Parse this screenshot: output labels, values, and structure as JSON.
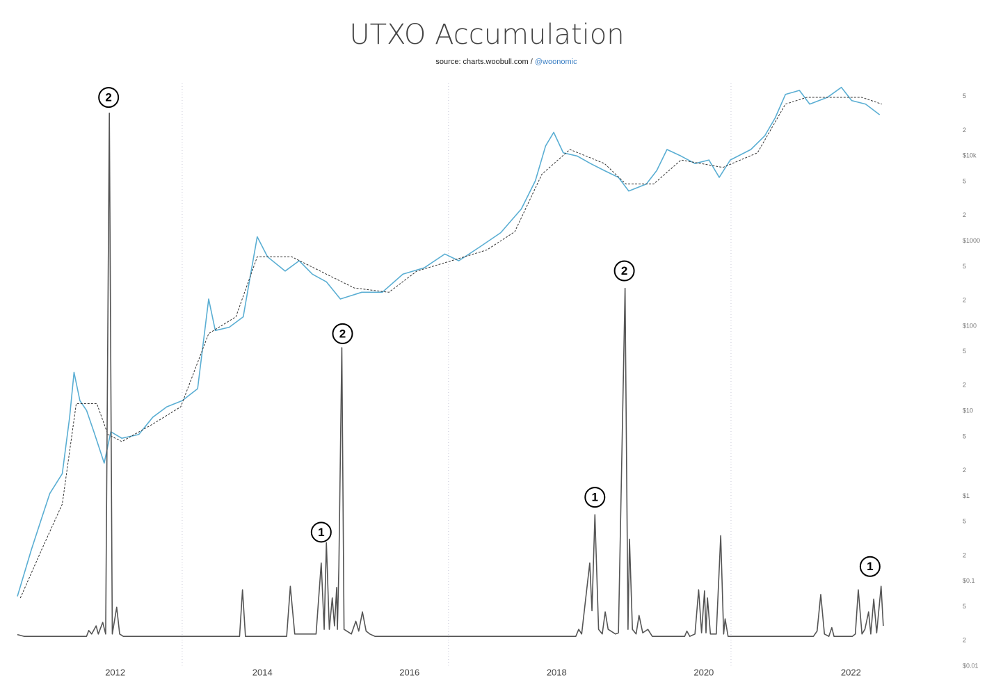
{
  "chart_data": {
    "type": "line",
    "title": "UTXO Accumulation",
    "source_text": "source: charts.woobull.com /",
    "source_link": "@woonomic",
    "log_y": true,
    "xlim": [
      2010.67,
      2022.63
    ],
    "xticks": [
      2012,
      2014,
      2016,
      2018,
      2020,
      2022
    ],
    "ylim": [
      0.01,
      70000
    ],
    "yticks": [
      {
        "value": 0.01,
        "label": "$0.01"
      },
      {
        "value": 0.02,
        "label": "2"
      },
      {
        "value": 0.05,
        "label": "5"
      },
      {
        "value": 0.1,
        "label": "$0.1"
      },
      {
        "value": 0.2,
        "label": "2"
      },
      {
        "value": 0.5,
        "label": "5"
      },
      {
        "value": 1,
        "label": "$1"
      },
      2,
      5,
      {
        "value": 10,
        "label": "$10"
      },
      {
        "value": 20,
        "label": "2"
      },
      {
        "value": 50,
        "label": "5"
      },
      {
        "value": 100,
        "label": "$100"
      },
      {
        "value": 200,
        "label": "2"
      },
      {
        "value": 500,
        "label": "5"
      },
      {
        "value": 1000,
        "label": "$1000"
      },
      {
        "value": 2000,
        "label": "2"
      },
      {
        "value": 5000,
        "label": "5"
      },
      {
        "value": 10000,
        "label": "$10k"
      },
      {
        "value": 20000,
        "label": "2"
      },
      {
        "value": 50000,
        "label": "5"
      }
    ],
    "y2lim": [
      0,
      1
    ],
    "vlines": [
      2012.91,
      2016.53,
      2020.37
    ],
    "vline_color": "#c8c8d8",
    "series": [
      {
        "color": "#5aaed3",
        "dash": false,
        "x": [
          2010.67,
          2010.86,
          2011.0,
          2011.11,
          2011.28,
          2011.38,
          2011.44,
          2011.52,
          2011.61,
          2011.71,
          2011.85,
          2011.94,
          2012.09,
          2012.32,
          2012.51,
          2012.7,
          2012.91,
          2013.12,
          2013.27,
          2013.36,
          2013.55,
          2013.74,
          2013.83,
          2013.93,
          2014.07,
          2014.31,
          2014.5,
          2014.68,
          2014.87,
          2015.06,
          2015.35,
          2015.63,
          2015.91,
          2016.2,
          2016.48,
          2016.67,
          2016.95,
          2017.24,
          2017.52,
          2017.71,
          2017.85,
          2017.96,
          2018.09,
          2018.28,
          2018.46,
          2018.65,
          2018.84,
          2018.98,
          2019.22,
          2019.36,
          2019.5,
          2019.69,
          2019.88,
          2020.07,
          2020.21,
          2020.36,
          2020.64,
          2020.83,
          2020.97,
          2021.11,
          2021.3,
          2021.44,
          2021.68,
          2021.87,
          2022.01,
          2022.2,
          2022.39
        ],
        "values": [
          0.065,
          0.23,
          0.54,
          1.05,
          1.8,
          8.3,
          28,
          13,
          10,
          5.6,
          2.4,
          5.6,
          4.7,
          5.2,
          8.3,
          11,
          13,
          18,
          204,
          87,
          95,
          126,
          355,
          1100,
          640,
          435,
          575,
          400,
          325,
          204,
          245,
          245,
          400,
          475,
          690,
          575,
          830,
          1230,
          2340,
          5000,
          12900,
          18600,
          10700,
          9800,
          8000,
          6600,
          5500,
          3800,
          4600,
          6600,
          11700,
          9800,
          8000,
          8800,
          5500,
          8800,
          11700,
          17000,
          27500,
          52000,
          58000,
          40000,
          48000,
          63000,
          44000,
          40000,
          30000
        ]
      },
      {
        "color": "#333333",
        "dash": true,
        "x": [
          2010.71,
          2011.0,
          2011.28,
          2011.47,
          2011.75,
          2011.9,
          2012.09,
          2012.51,
          2012.89,
          2013.27,
          2013.64,
          2013.93,
          2014.4,
          2014.87,
          2015.25,
          2015.72,
          2016.1,
          2016.57,
          2017.05,
          2017.43,
          2017.8,
          2018.18,
          2018.65,
          2018.94,
          2019.32,
          2019.69,
          2020.26,
          2020.73,
          2021.11,
          2021.4,
          2021.77,
          2022.15,
          2022.42
        ],
        "values": [
          0.062,
          0.23,
          0.79,
          12,
          12,
          5.2,
          4.3,
          6.9,
          11,
          80,
          126,
          640,
          640,
          400,
          275,
          245,
          435,
          575,
          770,
          1260,
          6000,
          11700,
          8000,
          4600,
          4600,
          8800,
          7200,
          10700,
          40000,
          48000,
          48000,
          48000,
          40000
        ]
      },
      {
        "color": "#555555",
        "dash": false,
        "axis": "y2",
        "x": [
          2010.67,
          2010.76,
          2011.61,
          2011.64,
          2011.68,
          2011.74,
          2011.77,
          2011.83,
          2011.87,
          2011.92,
          2011.96,
          2012.02,
          2012.06,
          2012.11,
          2013.69,
          2013.73,
          2013.77,
          2014.33,
          2014.38,
          2014.44,
          2014.73,
          2014.8,
          2014.84,
          2014.87,
          2014.91,
          2014.95,
          2014.98,
          2015.01,
          2015.02,
          2015.04,
          2015.08,
          2015.11,
          2015.21,
          2015.27,
          2015.31,
          2015.36,
          2015.41,
          2015.46,
          2015.53,
          2018.26,
          2018.3,
          2018.34,
          2018.45,
          2018.48,
          2018.52,
          2018.57,
          2018.62,
          2018.66,
          2018.7,
          2018.8,
          2018.84,
          2018.93,
          2018.97,
          2018.99,
          2019.03,
          2019.08,
          2019.12,
          2019.17,
          2019.24,
          2019.3,
          2019.74,
          2019.77,
          2019.81,
          2019.88,
          2019.93,
          2019.97,
          2020.01,
          2020.03,
          2020.05,
          2020.09,
          2020.17,
          2020.23,
          2020.27,
          2020.29,
          2020.33,
          2021.49,
          2021.54,
          2021.59,
          2021.64,
          2021.7,
          2021.74,
          2021.77,
          2022.02,
          2022.06,
          2022.1,
          2022.15,
          2022.19,
          2022.24,
          2022.27,
          2022.31,
          2022.35,
          2022.41,
          2022.44
        ],
        "values": [
          0.053,
          0.05,
          0.05,
          0.06,
          0.054,
          0.068,
          0.054,
          0.074,
          0.054,
          0.949,
          0.054,
          0.1,
          0.054,
          0.05,
          0.05,
          0.13,
          0.05,
          0.05,
          0.136,
          0.054,
          0.054,
          0.176,
          0.062,
          0.211,
          0.062,
          0.116,
          0.068,
          0.134,
          0.062,
          0.17,
          0.546,
          0.062,
          0.054,
          0.076,
          0.059,
          0.092,
          0.059,
          0.054,
          0.05,
          0.05,
          0.062,
          0.054,
          0.176,
          0.094,
          0.259,
          0.062,
          0.054,
          0.092,
          0.062,
          0.054,
          0.056,
          0.648,
          0.062,
          0.217,
          0.062,
          0.054,
          0.086,
          0.056,
          0.062,
          0.05,
          0.05,
          0.059,
          0.05,
          0.054,
          0.13,
          0.056,
          0.128,
          0.056,
          0.116,
          0.054,
          0.054,
          0.223,
          0.054,
          0.08,
          0.05,
          0.05,
          0.059,
          0.122,
          0.054,
          0.05,
          0.065,
          0.05,
          0.05,
          0.054,
          0.13,
          0.054,
          0.062,
          0.092,
          0.054,
          0.114,
          0.056,
          0.136,
          0.068
        ]
      }
    ],
    "annotations": [
      {
        "text": "2",
        "x": 2011.91,
        "y": 0.976
      },
      {
        "text": "2",
        "x": 2015.09,
        "y": 0.57
      },
      {
        "text": "2",
        "x": 2018.92,
        "y": 0.678
      },
      {
        "text": "1",
        "x": 2014.8,
        "y": 0.229
      },
      {
        "text": "1",
        "x": 2018.52,
        "y": 0.289
      },
      {
        "text": "1",
        "x": 2022.26,
        "y": 0.17
      }
    ]
  }
}
